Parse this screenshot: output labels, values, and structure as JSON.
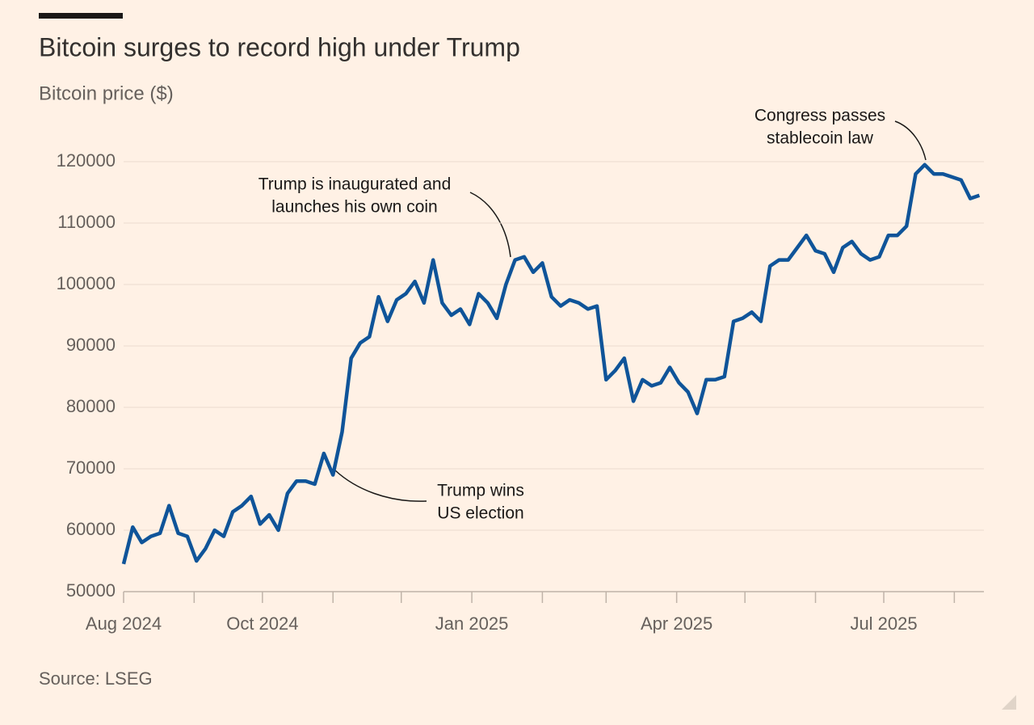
{
  "chart_data": {
    "type": "line",
    "title": "Bitcoin surges to record high under Trump",
    "subtitle": "Bitcoin price ($)",
    "source": "Source: LSEG",
    "annotations": [
      {
        "lines": [
          "Trump wins",
          "US election"
        ]
      },
      {
        "lines": [
          "Trump is inaugurated and",
          "launches his own coin"
        ]
      },
      {
        "lines": [
          "Congress passes",
          "stablecoin law"
        ]
      }
    ],
    "series": [
      {
        "name": "Bitcoin",
        "color": "#0f5499",
        "values": [
          54500,
          60500,
          58000,
          59000,
          59500,
          64000,
          59500,
          59000,
          55000,
          57000,
          60000,
          59000,
          63000,
          64000,
          65500,
          61000,
          62500,
          60000,
          66000,
          68000,
          68000,
          67500,
          72500,
          69000,
          76000,
          88000,
          90500,
          91500,
          98000,
          94000,
          97500,
          98500,
          100500,
          97000,
          104000,
          97000,
          95000,
          96000,
          93500,
          98500,
          97000,
          94500,
          100000,
          104000,
          104500,
          102000,
          103500,
          98000,
          96500,
          97500,
          97000,
          96000,
          96500,
          84500,
          86000,
          88000,
          81000,
          84500,
          83500,
          84000,
          86500,
          84000,
          82500,
          79000,
          84500,
          84500,
          85000,
          94000,
          94500,
          95500,
          94000,
          103000,
          104000,
          104000,
          106000,
          108000,
          105500,
          105000,
          102000,
          106000,
          107000,
          105000,
          104000,
          104500,
          108000,
          108000,
          109500,
          118000,
          119500,
          118000,
          118000,
          117500,
          117000,
          114000,
          114500
        ]
      }
    ],
    "xlim": [
      0,
      94.5
    ],
    "xticks": [
      {
        "value": 0,
        "label": "Aug 2024"
      },
      {
        "value": 15.25,
        "label": "Oct 2024"
      },
      {
        "value": 38.25,
        "label": "Jan 2025"
      },
      {
        "value": 60.75,
        "label": "Apr 2025"
      },
      {
        "value": 83.5,
        "label": "Jul 2025"
      }
    ],
    "minor_xticks": [
      7.75,
      23,
      30.5,
      46,
      53,
      68.25,
      76,
      91.25
    ],
    "ylim": [
      50000,
      120000
    ],
    "yticks": [
      50000,
      60000,
      70000,
      80000,
      90000,
      100000,
      110000,
      120000
    ],
    "grid": true
  }
}
